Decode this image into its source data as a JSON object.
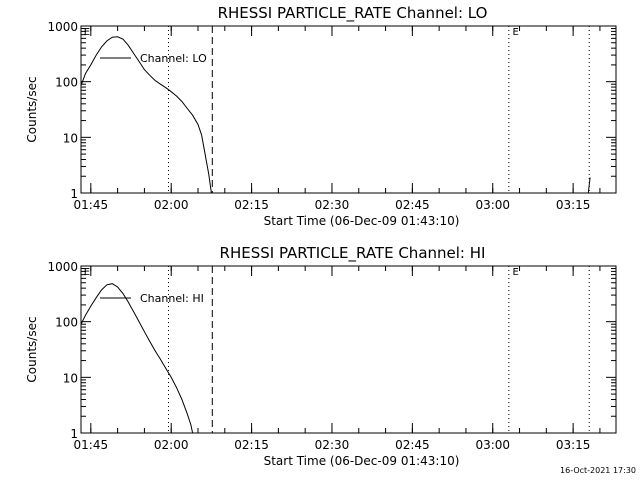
{
  "chart_data": [
    {
      "type": "line",
      "title": "RHESSI PARTICLE_RATE Channel: LO",
      "xlabel": "Start Time (06-Dec-09 01:43:10)",
      "ylabel": "Counts/sec",
      "y_scale": "log",
      "ylim": [
        1,
        1000
      ],
      "xlim": [
        "01:43:10",
        "03:23:00"
      ],
      "x_ticks": [
        "01:45",
        "02:00",
        "02:15",
        "02:30",
        "02:45",
        "03:00",
        "03:15"
      ],
      "y_ticks": [
        "1",
        "10",
        "100",
        "1000"
      ],
      "legend": {
        "label": "Channel: LO",
        "position": "top-left"
      },
      "markers": [
        {
          "label": "E",
          "time": "01:43:30"
        },
        {
          "label": "E",
          "time": "03:03:30"
        }
      ],
      "vlines": [
        {
          "time": "01:59:30",
          "style": "dotted"
        },
        {
          "time": "02:07:40",
          "style": "dashed"
        },
        {
          "time": "03:03:00",
          "style": "dotted"
        },
        {
          "time": "03:18:00",
          "style": "dotted"
        }
      ],
      "series": [
        {
          "name": "Channel: LO",
          "x": [
            "01:43:10",
            "01:44:00",
            "01:45:00",
            "01:46:00",
            "01:47:00",
            "01:48:00",
            "01:49:00",
            "01:50:00",
            "01:51:00",
            "01:52:00",
            "01:53:00",
            "01:54:00",
            "01:55:00",
            "01:56:00",
            "01:57:00",
            "01:58:00",
            "01:59:00",
            "02:00:00",
            "02:01:00",
            "02:02:00",
            "02:03:00",
            "02:04:00",
            "02:05:00",
            "02:05:40",
            "02:06:20",
            "02:07:00",
            "02:07:30"
          ],
          "values": [
            85,
            140,
            200,
            300,
            420,
            540,
            630,
            640,
            580,
            450,
            320,
            230,
            165,
            130,
            105,
            90,
            78,
            66,
            55,
            44,
            33,
            25,
            17,
            11,
            5,
            2.2,
            1
          ]
        },
        {
          "name": "Channel: LO",
          "x": [
            "03:17:50",
            "03:18:10"
          ],
          "values": [
            1,
            1.9
          ]
        }
      ]
    },
    {
      "type": "line",
      "title": "RHESSI PARTICLE_RATE Channel: HI",
      "xlabel": "Start Time (06-Dec-09 01:43:10)",
      "ylabel": "Counts/sec",
      "y_scale": "log",
      "ylim": [
        1,
        1000
      ],
      "xlim": [
        "01:43:10",
        "03:23:00"
      ],
      "x_ticks": [
        "01:45",
        "02:00",
        "02:15",
        "02:30",
        "02:45",
        "03:00",
        "03:15"
      ],
      "y_ticks": [
        "1",
        "10",
        "100",
        "1000"
      ],
      "legend": {
        "label": "Channel: HI",
        "position": "top-left"
      },
      "markers": [
        {
          "label": "E",
          "time": "01:43:30"
        },
        {
          "label": "E",
          "time": "03:03:30"
        }
      ],
      "vlines": [
        {
          "time": "01:59:30",
          "style": "dotted"
        },
        {
          "time": "02:07:40",
          "style": "dashed"
        },
        {
          "time": "03:03:00",
          "style": "dotted"
        },
        {
          "time": "03:18:00",
          "style": "dotted"
        }
      ],
      "series": [
        {
          "name": "Channel: HI",
          "x": [
            "01:43:10",
            "01:44:00",
            "01:45:00",
            "01:46:00",
            "01:47:00",
            "01:48:00",
            "01:49:00",
            "01:50:00",
            "01:51:00",
            "01:52:00",
            "01:53:00",
            "01:54:00",
            "01:55:00",
            "01:56:00",
            "01:57:00",
            "01:58:00",
            "01:59:00",
            "02:00:00",
            "02:01:00",
            "02:02:00",
            "02:03:00",
            "02:03:40",
            "02:04:00"
          ],
          "values": [
            90,
            130,
            190,
            270,
            370,
            460,
            480,
            420,
            320,
            225,
            150,
            100,
            66,
            44,
            30,
            21,
            14.5,
            10,
            6.5,
            4,
            2.2,
            1.4,
            1
          ]
        }
      ]
    }
  ],
  "footer": {
    "date": "16-Oct-2021 17:30"
  }
}
